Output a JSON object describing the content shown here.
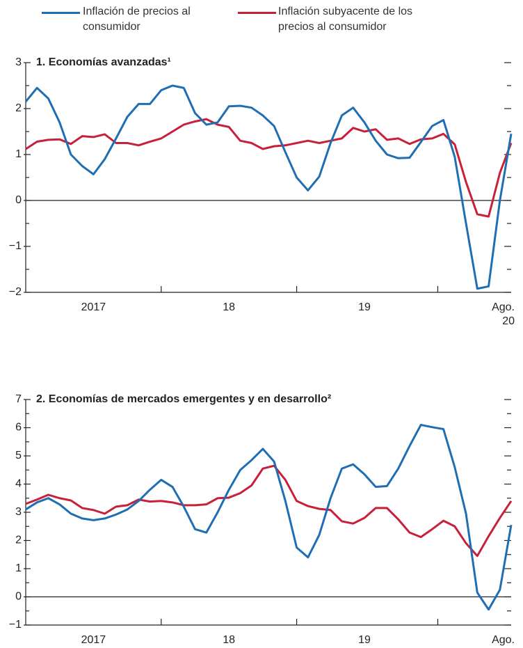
{
  "chart_data": [
    {
      "type": "line",
      "title": "1. Economías avanzadas¹",
      "categories": [
        null,
        null,
        null,
        null,
        null,
        null,
        "2017",
        null,
        null,
        null,
        null,
        null,
        null,
        null,
        null,
        null,
        null,
        null,
        "18",
        null,
        null,
        null,
        null,
        null,
        null,
        null,
        null,
        null,
        null,
        null,
        "19",
        null,
        null,
        null,
        null,
        null,
        null,
        null,
        null,
        null,
        null,
        null,
        null,
        "Ago. 20"
      ],
      "series": [
        {
          "name": "Inflación de precios al consumidor",
          "color": "#1f6eb4",
          "values": [
            2.15,
            2.45,
            2.22,
            1.7,
            1.0,
            0.75,
            0.57,
            0.9,
            1.35,
            1.82,
            2.1,
            2.1,
            2.4,
            2.5,
            2.45,
            1.9,
            1.65,
            1.7,
            2.05,
            2.06,
            2.02,
            1.85,
            1.62,
            1.05,
            0.5,
            0.22,
            0.52,
            1.25,
            1.85,
            2.02,
            1.7,
            1.3,
            1.0,
            0.92,
            0.93,
            1.27,
            1.62,
            1.75,
            0.95,
            -0.5,
            -1.92,
            -1.87,
            0.0,
            1.45
          ]
        },
        {
          "name": "Inflación subyacente de los precios al consumidor",
          "color": "#c8203a",
          "values": [
            1.12,
            1.28,
            1.32,
            1.33,
            1.23,
            1.4,
            1.38,
            1.44,
            1.25,
            1.25,
            1.2,
            1.28,
            1.35,
            1.5,
            1.65,
            1.72,
            1.77,
            1.65,
            1.6,
            1.3,
            1.25,
            1.12,
            1.18,
            1.2,
            1.25,
            1.3,
            1.25,
            1.3,
            1.35,
            1.58,
            1.5,
            1.55,
            1.32,
            1.35,
            1.23,
            1.33,
            1.35,
            1.45,
            1.22,
            0.4,
            -0.3,
            -0.35,
            0.6,
            1.25
          ]
        }
      ],
      "ylim": [
        -2,
        3
      ],
      "yticks": [
        {
          "value": -2,
          "label": "−2"
        },
        {
          "value": -1,
          "label": "−1"
        },
        0,
        1,
        2,
        3
      ]
    },
    {
      "type": "line",
      "title": "2. Economías de mercados emergentes y en desarrollo²",
      "categories": [
        null,
        null,
        null,
        null,
        null,
        null,
        "2017",
        null,
        null,
        null,
        null,
        null,
        null,
        null,
        null,
        null,
        null,
        null,
        "18",
        null,
        null,
        null,
        null,
        null,
        null,
        null,
        null,
        null,
        null,
        null,
        "19",
        null,
        null,
        null,
        null,
        null,
        null,
        null,
        null,
        null,
        null,
        null,
        null,
        "Ago. 20"
      ],
      "series": [
        {
          "color": "#1f6eb4",
          "values": [
            3.1,
            3.35,
            3.5,
            3.28,
            2.95,
            2.78,
            2.72,
            2.78,
            2.92,
            3.1,
            3.4,
            3.8,
            4.15,
            3.9,
            3.2,
            2.4,
            2.28,
            3.0,
            3.8,
            4.5,
            4.85,
            5.25,
            4.8,
            3.4,
            1.75,
            1.4,
            2.2,
            3.5,
            4.55,
            4.7,
            4.35,
            3.9,
            3.93,
            4.55,
            5.35,
            6.1,
            6.02,
            5.95,
            4.6,
            2.95,
            0.15,
            -0.45,
            0.25,
            2.55
          ]
        },
        {
          "color": "#c8203a",
          "values": [
            3.3,
            3.45,
            3.62,
            3.5,
            3.42,
            3.15,
            3.08,
            2.95,
            3.2,
            3.25,
            3.45,
            3.38,
            3.4,
            3.35,
            3.25,
            3.25,
            3.28,
            3.5,
            3.52,
            3.68,
            3.95,
            4.55,
            4.65,
            4.15,
            3.4,
            3.22,
            3.12,
            3.08,
            2.68,
            2.6,
            2.8,
            3.15,
            3.15,
            2.75,
            2.28,
            2.12,
            2.4,
            2.7,
            2.5,
            1.9,
            1.45,
            2.15,
            2.8,
            3.4
          ]
        }
      ],
      "ylim": [
        -1,
        7
      ],
      "yticks": [
        {
          "value": -1,
          "label": "−1"
        },
        0,
        1,
        2,
        3,
        4,
        5,
        6,
        7
      ]
    }
  ]
}
